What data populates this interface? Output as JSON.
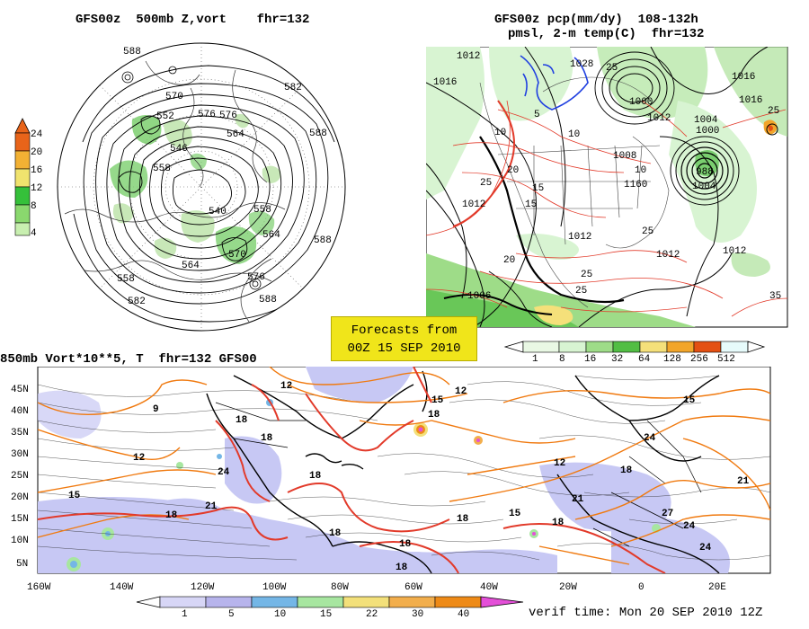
{
  "titles": {
    "top_left": "GFS00z  500mb Z,vort    fhr=132",
    "top_right_line1": "GFS00z pcp(mm/dy)  108-132h",
    "top_right_line2": "pmsl, 2-m temp(C)  fhr=132",
    "bottom": "850mb Vort*10**5, T  fhr=132 GFS00"
  },
  "banner": {
    "line1": "Forecasts from",
    "line2": "00Z 15 SEP 2010"
  },
  "verif_time": "verif time: Mon 20 SEP 2010 12Z",
  "colors": {
    "bg": "#ffffff",
    "vort_green": "#7ccf6e",
    "vort_light": "#c8e8b8",
    "precip_green": "#9edc88",
    "temp_red": "#e23a2a",
    "temp_orange": "#f07a10",
    "low_blue": "#2040e0",
    "vort_lavender": "#c7c8f4",
    "banner": "#f0e51a"
  },
  "left_colorbar": {
    "labels": [
      "24",
      "20",
      "16",
      "12",
      "8",
      "4"
    ],
    "colors": [
      "#e8641a",
      "#f2b134",
      "#f0e36e",
      "#35c03a",
      "#8ad86e",
      "#c8efb0"
    ]
  },
  "right_colorbar": {
    "labels": [
      "1",
      "8",
      "16",
      "32",
      "64",
      "128",
      "256",
      "512"
    ],
    "colors": [
      "#d8f4d2",
      "#9edc88",
      "#52be44",
      "#f5e07a",
      "#f2a52a",
      "#e45012",
      "#e7fbfb"
    ]
  },
  "bottom_colorbar": {
    "labels": [
      "1",
      "5",
      "10",
      "15",
      "22",
      "30",
      "40"
    ],
    "colors": [
      "#d7d6f6",
      "#b7b4ec",
      "#74b6e6",
      "#a7e6a0",
      "#f3e07a",
      "#f2ae4c",
      "#ee8a17",
      "#e44fd8"
    ]
  },
  "polar_labels": [
    "588",
    "582",
    "570",
    "576",
    "552",
    "546",
    "558",
    "564",
    "540",
    "576",
    "588",
    "558",
    "564",
    "576",
    "564",
    "558",
    "570",
    "582",
    "588",
    "588"
  ],
  "na_labels": [
    "1012",
    "1016",
    "1028",
    "1000",
    "1012",
    "1004",
    "1008",
    "1012",
    "1016",
    "1012",
    "1006",
    "1004",
    "1000",
    "988",
    "1012",
    "1012",
    "1016"
  ],
  "na_temp_labels": [
    "25",
    "10",
    "25",
    "5",
    "15",
    "10",
    "20",
    "15",
    "10",
    "1160",
    "25",
    "25",
    "25",
    "25",
    "35",
    "20"
  ],
  "lat_labels": [
    "45N",
    "40N",
    "35N",
    "30N",
    "25N",
    "20N",
    "15N",
    "10N",
    "5N"
  ],
  "lon_labels": [
    "160W",
    "140W",
    "120W",
    "100W",
    "80W",
    "60W",
    "40W",
    "20W",
    "0",
    "20E"
  ],
  "vort_labels": [
    "12",
    "18",
    "18",
    "18",
    "24",
    "18",
    "18",
    "21",
    "12",
    "15",
    "18",
    "18",
    "15",
    "18",
    "9",
    "12",
    "15",
    "18",
    "24",
    "21",
    "24",
    "27",
    "21",
    "24",
    "18",
    "18",
    "12",
    "15"
  ]
}
